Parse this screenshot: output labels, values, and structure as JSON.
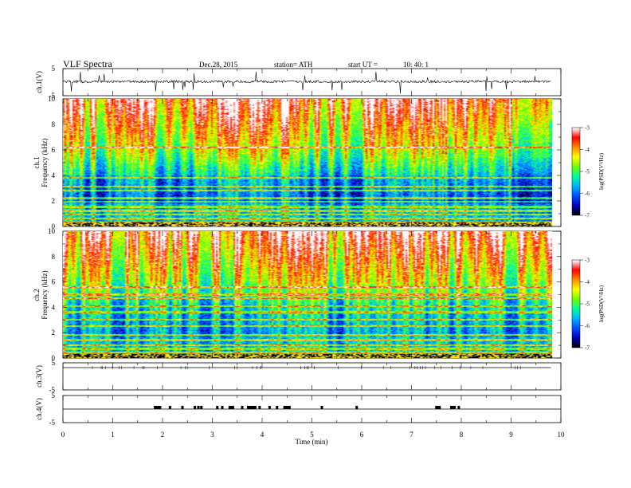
{
  "header": {
    "title": "VLF  Spectra",
    "date": "Dec.28, 2015",
    "station": "station= ATH",
    "start_label": "start  UT  =",
    "start_time": "10: 40: 1"
  },
  "chart_data": {
    "type": "heatmap",
    "xlabel": "Time  (min)",
    "xlim": [
      0,
      10
    ],
    "x_ticks": [
      "0",
      "1",
      "2",
      "3",
      "4",
      "5",
      "6",
      "7",
      "8",
      "9",
      "10"
    ],
    "data_extent_min": 9.8,
    "panels": {
      "ch1_waveform": {
        "ylabel": "ch.1(V)",
        "ylim": [
          -5,
          5
        ],
        "ticks": [
          "5",
          "-5"
        ],
        "baseline": 0
      },
      "ch1_spectrum": {
        "ylabel_top": "ch.1",
        "ylabel": "Frequency  (kHz)",
        "ylim": [
          0,
          10
        ],
        "ticks": [
          "0",
          "2",
          "4",
          "6",
          "8",
          "10"
        ]
      },
      "ch2_spectrum": {
        "ylabel_top": "ch.2",
        "ylabel": "Frequency  (kHz)",
        "ylim": [
          0,
          10
        ],
        "ticks": [
          "0",
          "2",
          "4",
          "6",
          "8",
          "10"
        ]
      },
      "ch3_waveform": {
        "ylabel": "ch.3(V)",
        "ylim": [
          -5,
          5
        ],
        "ticks": [
          "5",
          "-5"
        ],
        "baseline": 0
      },
      "ch4_waveform": {
        "ylabel": "ch.4(V)",
        "ylim": [
          -5,
          5
        ],
        "ticks": [
          "5",
          "-5"
        ],
        "baseline": 0
      }
    },
    "colorbar": {
      "label": "log(PSD(V²/Hz)",
      "range": [
        -7,
        -3
      ],
      "ticks": [
        "-3",
        "-4",
        "-5",
        "-6",
        "-7"
      ],
      "colors": [
        "#000000",
        "#0000c0",
        "#0050ff",
        "#00b4ff",
        "#00ff9a",
        "#6cff00",
        "#ffff00",
        "#ff8c00",
        "#ff0000",
        "#ffffff"
      ]
    },
    "ch4_pulse_times_min": [
      1.85,
      1.95,
      2.15,
      2.4,
      2.65,
      2.72,
      2.78,
      3.1,
      3.2,
      3.35,
      3.6,
      3.72,
      3.8,
      3.95,
      4.15,
      4.3,
      4.45,
      4.55,
      5.2,
      5.9,
      7.5,
      7.8,
      7.95
    ]
  }
}
